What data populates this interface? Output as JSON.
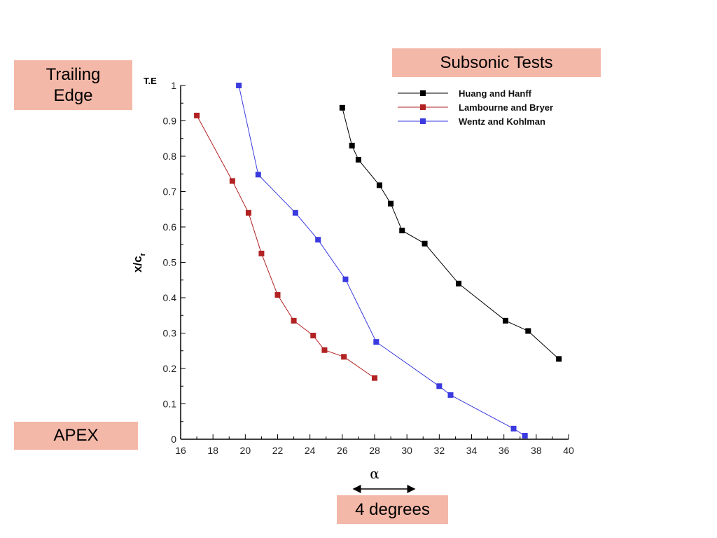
{
  "callouts": {
    "trailing_edge": "Trailing\nEdge",
    "subsonic": "Subsonic Tests",
    "apex": "APEX",
    "degrees": "4 degrees"
  },
  "chart_data": {
    "type": "line",
    "title": "",
    "xlabel": "α",
    "ylabel": "x/c_r",
    "top_label": "T.E",
    "xlim": [
      16,
      40
    ],
    "ylim": [
      0,
      1
    ],
    "xticks": [
      16,
      18,
      20,
      22,
      24,
      26,
      28,
      30,
      32,
      34,
      36,
      38,
      40
    ],
    "yticks": [
      0,
      0.1,
      0.2,
      0.3,
      0.4,
      0.5,
      0.6,
      0.7,
      0.8,
      0.9,
      1
    ],
    "legend_position": "top-right",
    "grid": false,
    "series": [
      {
        "name": "Huang and Hanff",
        "color": "#000000",
        "x": [
          26.0,
          26.6,
          27.0,
          28.3,
          29.0,
          29.7,
          31.1,
          33.2,
          36.1,
          37.5,
          39.4
        ],
        "y": [
          0.937,
          0.83,
          0.79,
          0.718,
          0.666,
          0.59,
          0.553,
          0.44,
          0.335,
          0.306,
          0.227
        ]
      },
      {
        "name": "Lambourne and Bryer",
        "color": "#b22222",
        "x": [
          17.0,
          19.2,
          20.2,
          21.0,
          22.0,
          23.0,
          24.2,
          24.9,
          26.1,
          28.0
        ],
        "y": [
          0.915,
          0.73,
          0.64,
          0.525,
          0.408,
          0.335,
          0.293,
          0.252,
          0.233,
          0.173
        ]
      },
      {
        "name": "Wentz and Kohlman",
        "color": "#3a3ae0",
        "x": [
          19.6,
          20.8,
          23.1,
          24.5,
          26.2,
          28.1,
          32.0,
          32.7,
          36.6,
          37.3
        ],
        "y": [
          1.0,
          0.748,
          0.64,
          0.564,
          0.452,
          0.275,
          0.15,
          0.125,
          0.03,
          0.01
        ]
      }
    ]
  }
}
